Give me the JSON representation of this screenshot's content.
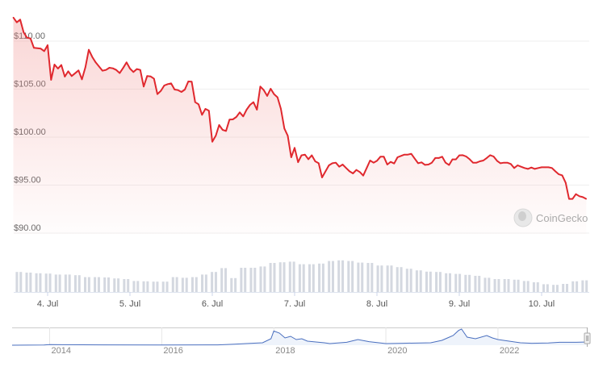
{
  "watermark": "CoinGecko",
  "colors": {
    "line": "#e0282e",
    "area": "#f4aaa9",
    "volume": "#d4d8e0",
    "navigator_line": "#4a6fbf",
    "navigator_fill": "#eef3fb",
    "grid": "#efefef"
  },
  "chart_data": {
    "type": "line",
    "title": "",
    "xlabel": "",
    "ylabel": "",
    "y_ticks": [
      "$90.00",
      "$95.00",
      "$100.00",
      "$105.00",
      "$110.00"
    ],
    "y_tick_values": [
      90,
      95,
      100,
      105,
      110
    ],
    "ylim": [
      90,
      113
    ],
    "grid": true,
    "x_ticks": [
      "4. Jul",
      "5. Jul",
      "6. Jul",
      "7. Jul",
      "8. Jul",
      "9. Jul",
      "10. Jul"
    ],
    "x_range": [
      "3 Jul 14:00",
      "10 Jul 13:00"
    ],
    "price": {
      "x": [
        "3 Jul 14:00",
        "3 Jul 15:00",
        "3 Jul 16:00",
        "3 Jul 17:00",
        "3 Jul 18:00",
        "3 Jul 19:00",
        "3 Jul 20:00",
        "3 Jul 22:00",
        "3 Jul 23:00",
        "4 Jul 00:00",
        "4 Jul 01:00",
        "4 Jul 02:00",
        "4 Jul 03:00",
        "4 Jul 04:00",
        "4 Jul 05:00",
        "4 Jul 06:00",
        "4 Jul 07:00",
        "4 Jul 09:00",
        "4 Jul 10:00",
        "4 Jul 11:00",
        "4 Jul 12:00",
        "4 Jul 13:00",
        "4 Jul 14:00",
        "4 Jul 16:00",
        "4 Jul 17:00",
        "4 Jul 18:00",
        "4 Jul 19:00",
        "4 Jul 20:00",
        "4 Jul 21:00",
        "4 Jul 22:00",
        "4 Jul 23:00",
        "5 Jul 00:00",
        "5 Jul 01:00",
        "5 Jul 02:00",
        "5 Jul 03:00",
        "5 Jul 04:00",
        "5 Jul 05:00",
        "5 Jul 06:00",
        "5 Jul 07:00",
        "5 Jul 08:00",
        "5 Jul 09:00",
        "5 Jul 10:00",
        "5 Jul 11:00",
        "5 Jul 12:00",
        "5 Jul 13:00",
        "5 Jul 14:00",
        "5 Jul 15:00",
        "5 Jul 16:00",
        "5 Jul 17:00",
        "5 Jul 18:00",
        "5 Jul 19:00",
        "5 Jul 20:00",
        "5 Jul 21:00",
        "5 Jul 22:00",
        "5 Jul 23:00",
        "6 Jul 00:00",
        "6 Jul 01:00",
        "6 Jul 02:00",
        "6 Jul 03:00",
        "6 Jul 04:00",
        "6 Jul 05:00",
        "6 Jul 06:00",
        "6 Jul 07:00",
        "6 Jul 08:00",
        "6 Jul 09:00",
        "6 Jul 10:00",
        "6 Jul 11:00",
        "6 Jul 12:00",
        "6 Jul 13:00",
        "6 Jul 14:00",
        "6 Jul 15:00",
        "6 Jul 16:00",
        "6 Jul 17:00",
        "6 Jul 18:00",
        "6 Jul 19:00",
        "6 Jul 20:00",
        "6 Jul 21:00",
        "6 Jul 22:00",
        "6 Jul 23:00",
        "7 Jul 00:00",
        "7 Jul 01:00",
        "7 Jul 02:00",
        "7 Jul 03:00",
        "7 Jul 04:00",
        "7 Jul 05:00",
        "7 Jul 06:00",
        "7 Jul 07:00",
        "7 Jul 08:00",
        "7 Jul 09:00",
        "7 Jul 10:00",
        "7 Jul 11:00",
        "7 Jul 12:00",
        "7 Jul 13:00",
        "7 Jul 14:00",
        "7 Jul 15:00",
        "7 Jul 16:00",
        "7 Jul 17:00",
        "7 Jul 18:00",
        "7 Jul 19:00",
        "7 Jul 20:00",
        "7 Jul 21:00",
        "7 Jul 22:00",
        "7 Jul 23:00",
        "8 Jul 00:00",
        "8 Jul 01:00",
        "8 Jul 02:00",
        "8 Jul 03:00",
        "8 Jul 04:00",
        "8 Jul 05:00",
        "8 Jul 06:00",
        "8 Jul 07:00",
        "8 Jul 08:00",
        "8 Jul 09:00",
        "8 Jul 10:00",
        "8 Jul 11:00",
        "8 Jul 12:00",
        "8 Jul 13:00",
        "8 Jul 14:00",
        "8 Jul 15:00",
        "8 Jul 16:00",
        "8 Jul 17:00",
        "8 Jul 18:00",
        "8 Jul 19:00",
        "8 Jul 20:00",
        "8 Jul 21:00",
        "8 Jul 22:00",
        "8 Jul 23:00",
        "9 Jul 00:00",
        "9 Jul 01:00",
        "9 Jul 02:00",
        "9 Jul 03:00",
        "9 Jul 04:00",
        "9 Jul 05:00",
        "9 Jul 06:00",
        "9 Jul 07:00",
        "9 Jul 08:00",
        "9 Jul 09:00",
        "9 Jul 10:00",
        "9 Jul 11:00",
        "9 Jul 12:00",
        "9 Jul 13:00",
        "9 Jul 14:00",
        "9 Jul 15:00",
        "9 Jul 16:00",
        "9 Jul 17:00",
        "9 Jul 18:00",
        "9 Jul 19:00",
        "9 Jul 20:00",
        "9 Jul 21:00",
        "9 Jul 22:00",
        "9 Jul 23:00",
        "10 Jul 00:00",
        "10 Jul 01:00",
        "10 Jul 02:00",
        "10 Jul 03:00",
        "10 Jul 04:00",
        "10 Jul 05:00",
        "10 Jul 06:00",
        "10 Jul 07:00",
        "10 Jul 08:00",
        "10 Jul 09:00",
        "10 Jul 10:00",
        "10 Jul 11:00",
        "10 Jul 12:00",
        "10 Jul 13:00"
      ],
      "y": [
        112.46,
        111.96,
        112.24,
        110.92,
        110.36,
        110.28,
        109.3,
        109.22,
        108.96,
        109.58,
        105.97,
        107.56,
        107.14,
        107.51,
        106.3,
        106.86,
        106.36,
        106.95,
        106.02,
        107.28,
        109.1,
        108.35,
        107.79,
        106.92,
        107.0,
        107.23,
        107.17,
        107.0,
        106.67,
        107.2,
        107.79,
        107.14,
        106.78,
        107.09,
        107.0,
        105.27,
        106.36,
        106.33,
        106.08,
        104.48,
        104.82,
        105.38,
        105.52,
        105.6,
        104.96,
        104.9,
        104.71,
        104.96,
        105.8,
        105.77,
        103.64,
        103.42,
        102.32,
        102.94,
        102.75,
        99.52,
        100.14,
        101.26,
        100.76,
        100.64,
        101.82,
        101.85,
        102.1,
        102.58,
        102.16,
        102.86,
        103.36,
        103.64,
        102.86,
        105.27,
        104.9,
        104.29,
        105.04,
        104.48,
        104.15,
        102.94,
        100.9,
        100.14,
        97.9,
        98.88,
        97.39,
        98.1,
        98.18,
        97.7,
        98.1,
        97.48,
        97.28,
        95.8,
        96.44,
        97.06,
        97.28,
        97.34,
        96.92,
        97.14,
        96.78,
        96.44,
        96.22,
        96.58,
        96.36,
        95.99,
        96.78,
        97.56,
        97.34,
        97.53,
        97.96,
        97.96,
        97.14,
        97.42,
        97.25,
        97.9,
        98.04,
        98.18,
        98.18,
        98.26,
        97.76,
        97.28,
        97.37,
        97.11,
        97.14,
        97.34,
        97.82,
        97.82,
        97.96,
        97.34,
        97.09,
        97.68,
        97.68,
        98.1,
        98.12,
        97.98,
        97.7,
        97.34,
        97.34,
        97.48,
        97.56,
        97.82,
        98.12,
        97.98,
        97.53,
        97.28,
        97.34,
        97.34,
        97.2,
        96.78,
        97.06,
        96.92,
        96.78,
        96.69,
        96.83,
        96.69,
        96.78,
        96.86,
        96.86,
        96.86,
        96.78,
        96.44,
        96.13,
        96.02,
        95.24,
        93.56,
        93.56,
        94.06,
        93.84,
        93.75,
        93.56
      ]
    },
    "volume_relative": [
      62,
      60,
      58,
      57,
      54,
      54,
      52,
      46,
      46,
      45,
      42,
      40,
      34,
      33,
      32,
      32,
      46,
      44,
      46,
      54,
      62,
      74,
      43,
      75,
      75,
      79,
      90,
      92,
      94,
      86,
      86,
      88,
      96,
      98,
      96,
      91,
      90,
      82,
      82,
      77,
      72,
      67,
      63,
      62,
      58,
      56,
      53,
      50,
      44,
      40,
      40,
      38,
      34,
      30,
      24,
      22,
      25,
      33,
      36
    ],
    "navigator": {
      "year_ticks": [
        "2014",
        "2016",
        "2018",
        "2020",
        "2022"
      ],
      "year_tick_values": [
        2014,
        2016,
        2018,
        2020,
        2022
      ],
      "range": [
        2013.33,
        2023.6
      ],
      "x": [
        2013.33,
        2013.9,
        2014.0,
        2014.2,
        2015,
        2016,
        2017,
        2017.3,
        2017.5,
        2017.8,
        2017.95,
        2018.0,
        2018.1,
        2018.2,
        2018.3,
        2018.4,
        2018.5,
        2018.6,
        2018.9,
        2019.0,
        2019.3,
        2019.5,
        2019.7,
        2020.0,
        2020.3,
        2020.8,
        2021.0,
        2021.1,
        2021.2,
        2021.3,
        2021.35,
        2021.45,
        2021.6,
        2021.8,
        2021.9,
        2022.0,
        2022.2,
        2022.4,
        2022.6,
        2022.9,
        2023.1,
        2023.4,
        2023.6
      ],
      "y_relative": [
        0,
        1,
        4,
        3,
        2,
        1,
        2,
        6,
        10,
        15,
        40,
        88,
        75,
        45,
        55,
        35,
        40,
        25,
        15,
        10,
        18,
        35,
        22,
        10,
        12,
        15,
        30,
        45,
        60,
        92,
        100,
        50,
        40,
        60,
        45,
        35,
        25,
        15,
        12,
        14,
        18,
        18,
        20
      ]
    }
  }
}
